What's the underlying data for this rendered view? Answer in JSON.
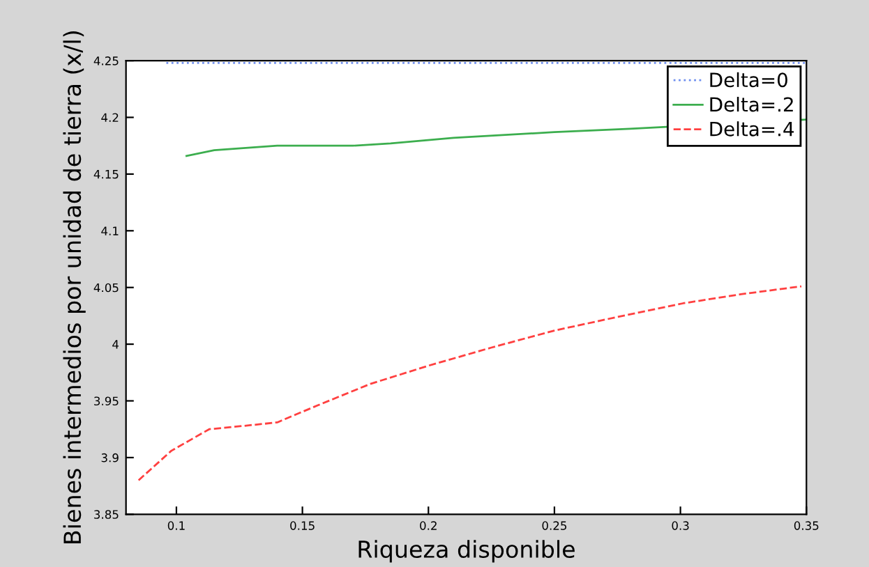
{
  "chart_data": {
    "type": "line",
    "xlabel": "Riqueza disponible",
    "ylabel": "Bienes intermedios por unidad de tierra (x/l)",
    "xlim": [
      0.08,
      0.35
    ],
    "xticks": [
      0.1,
      0.15,
      0.2,
      0.25,
      0.3,
      0.35
    ],
    "ylim": [
      3.85,
      4.25
    ],
    "yticks": [
      3.85,
      3.9,
      3.95,
      4,
      4.05,
      4.1,
      4.15,
      4.2,
      4.25
    ],
    "grid": false,
    "legend": "top right",
    "series": [
      {
        "name": "Delta=0",
        "color": "#6f8fef",
        "line_style": "dotted",
        "x": [
          0.096,
          0.35
        ],
        "values": [
          4.248,
          4.248
        ]
      },
      {
        "name": "Delta=.2",
        "color": "#3cae4e",
        "line_style": "solid",
        "x": [
          0.104,
          0.115,
          0.14,
          0.17,
          0.185,
          0.21,
          0.25,
          0.28,
          0.35
        ],
        "values": [
          4.166,
          4.171,
          4.175,
          4.175,
          4.177,
          4.182,
          4.187,
          4.19,
          4.198
        ]
      },
      {
        "name": "Delta=.4",
        "color": "#ff4040",
        "line_style": "dashed",
        "x": [
          0.085,
          0.098,
          0.113,
          0.127,
          0.14,
          0.156,
          0.177,
          0.2,
          0.225,
          0.25,
          0.275,
          0.301,
          0.324,
          0.348
        ],
        "values": [
          3.88,
          3.906,
          3.925,
          3.928,
          3.931,
          3.946,
          3.965,
          3.981,
          3.997,
          4.012,
          4.024,
          4.036,
          4.044,
          4.051
        ]
      }
    ]
  }
}
